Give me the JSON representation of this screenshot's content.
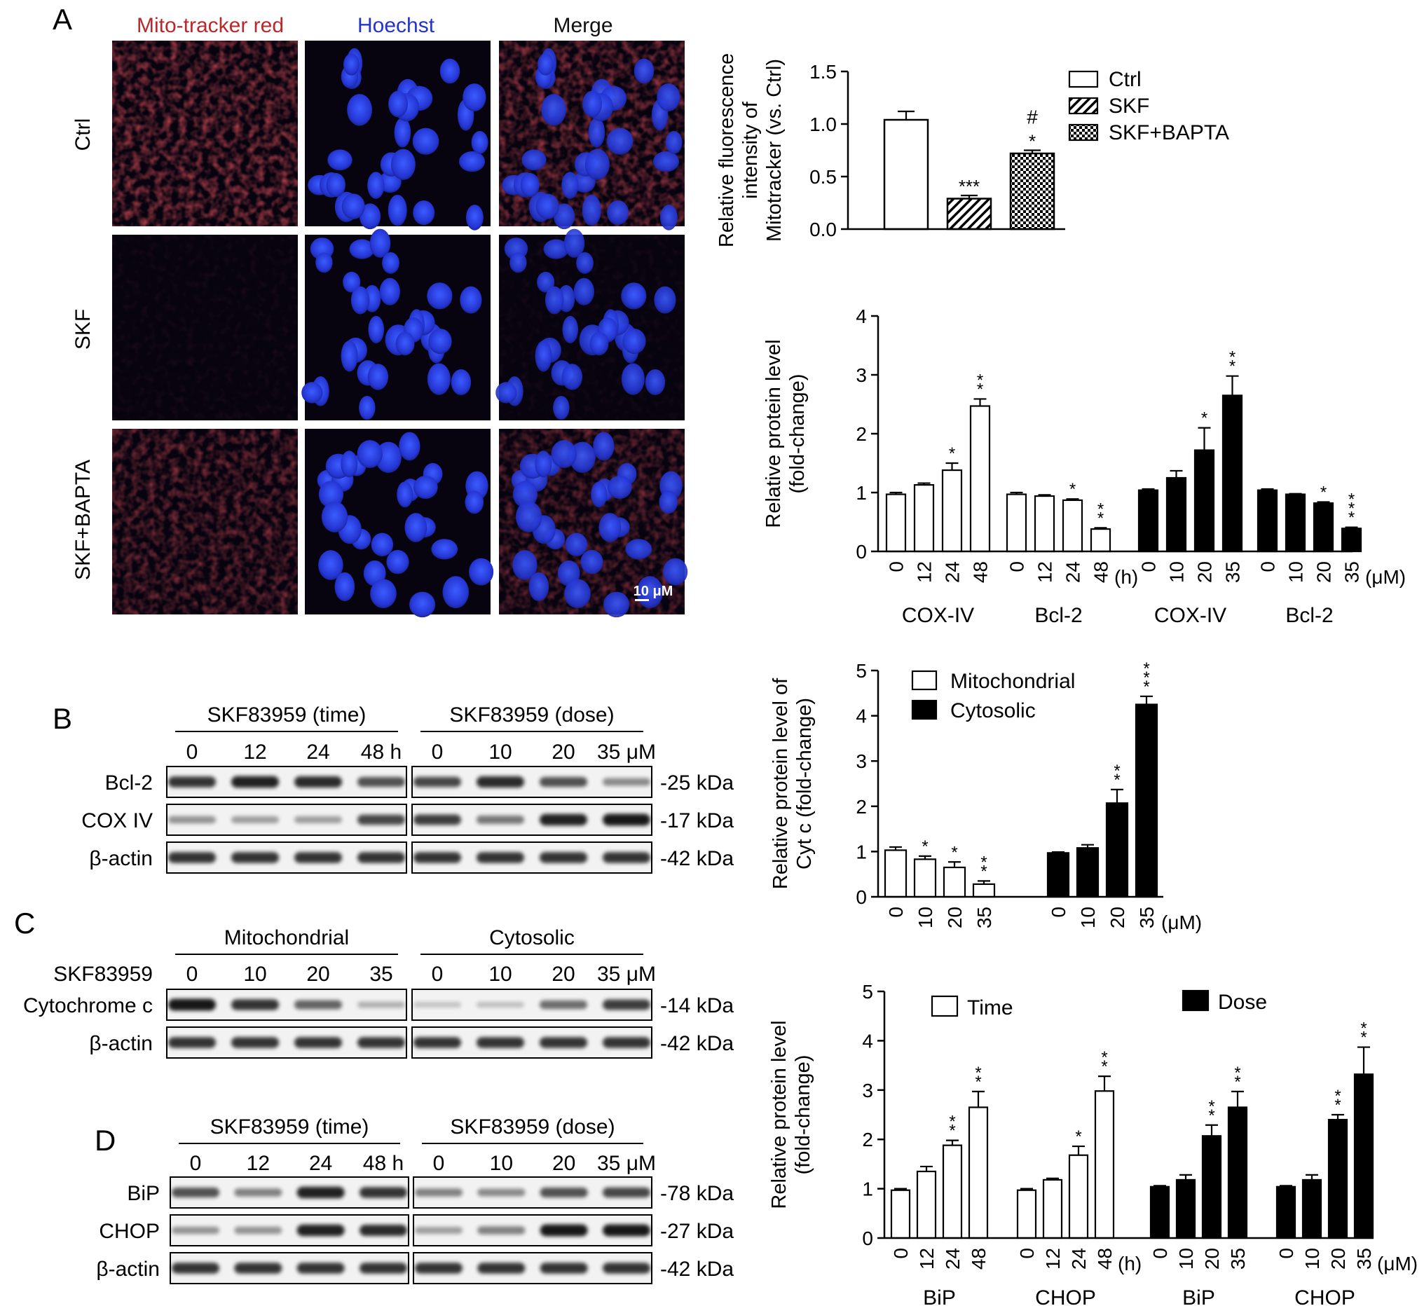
{
  "panel_labels": [
    "A",
    "B",
    "C",
    "D"
  ],
  "micrograph": {
    "columns": [
      "Mito-tracker red",
      "Hoechst",
      "Merge"
    ],
    "rows": [
      "Ctrl",
      "SKF",
      "SKF+BAPTA"
    ],
    "scale_bar": "10 μM",
    "colors": {
      "mito": "#c0282c",
      "hoechst": "#2433c8",
      "background": "#0a0612"
    }
  },
  "blots": {
    "B": {
      "headers": [
        "SKF83959 (time)",
        "SKF83959 (dose)"
      ],
      "left_lanes": [
        "0",
        "12",
        "24",
        "48 h"
      ],
      "right_lanes": [
        "0",
        "10",
        "20",
        "35 μM"
      ],
      "rows": [
        {
          "label": "Bcl-2",
          "kda": "-25 kDa",
          "intensity_left": [
            0.85,
            0.95,
            0.9,
            0.7
          ],
          "intensity_right": [
            0.75,
            0.9,
            0.7,
            0.4
          ]
        },
        {
          "label": "COX IV",
          "kda": "-17 kDa",
          "intensity_left": [
            0.35,
            0.3,
            0.3,
            0.75
          ],
          "intensity_right": [
            0.8,
            0.5,
            0.95,
            1.0
          ]
        },
        {
          "label": "β-actin",
          "kda": "-42 kDa",
          "intensity_left": [
            0.85,
            0.85,
            0.85,
            0.85
          ],
          "intensity_right": [
            0.85,
            0.85,
            0.85,
            0.85
          ]
        }
      ]
    },
    "C": {
      "headers": [
        "Mitochondrial",
        "Cytosolic"
      ],
      "row_title": "SKF83959",
      "left_lanes": [
        "0",
        "10",
        "20",
        "35"
      ],
      "right_lanes": [
        "0",
        "10",
        "20",
        "35 μM"
      ],
      "rows": [
        {
          "label": "Cytochrome c",
          "kda": "-14 kDa",
          "intensity_left": [
            1.0,
            0.85,
            0.6,
            0.2
          ],
          "intensity_right": [
            0.1,
            0.12,
            0.55,
            0.8
          ]
        },
        {
          "label": "β-actin",
          "kda": "-42 kDa",
          "intensity_left": [
            0.85,
            0.85,
            0.85,
            0.85
          ],
          "intensity_right": [
            0.85,
            0.85,
            0.85,
            0.85
          ]
        }
      ]
    },
    "D": {
      "headers": [
        "SKF83959 (time)",
        "SKF83959 (dose)"
      ],
      "left_lanes": [
        "0",
        "12",
        "24",
        "48 h"
      ],
      "right_lanes": [
        "0",
        "10",
        "20",
        "35 μM"
      ],
      "rows": [
        {
          "label": "BiP",
          "kda": "-78 kDa",
          "intensity_left": [
            0.7,
            0.45,
            0.95,
            0.85
          ],
          "intensity_right": [
            0.45,
            0.4,
            0.7,
            0.75
          ]
        },
        {
          "label": "CHOP",
          "kda": "-27 kDa",
          "intensity_left": [
            0.35,
            0.35,
            0.95,
            0.9
          ],
          "intensity_right": [
            0.3,
            0.45,
            1.0,
            1.0
          ]
        },
        {
          "label": "β-actin",
          "kda": "-42 kDa",
          "intensity_left": [
            0.85,
            0.85,
            0.85,
            0.85
          ],
          "intensity_right": [
            0.85,
            0.85,
            0.85,
            0.85
          ]
        }
      ]
    }
  },
  "chart_data": [
    {
      "type": "bar",
      "panel": "A",
      "ylabel": "Relative fluorescence intensity of Mitotracker (vs. Ctrl)",
      "ylabel_lines": [
        "Relative fluorescence",
        "intensity of",
        "Mitotracker (vs. Ctrl)"
      ],
      "ylim": [
        0,
        1.5
      ],
      "yticks": [
        "0.0",
        "0.5",
        "1.0",
        "1.5"
      ],
      "categories": [
        "Ctrl",
        "SKF",
        "SKF+BAPTA"
      ],
      "values": [
        1.04,
        0.29,
        0.72
      ],
      "errors": [
        0.08,
        0.03,
        0.03
      ],
      "annotations": [
        [
          ""
        ],
        [
          "***"
        ],
        [
          "*",
          "#"
        ]
      ],
      "fills": [
        "white",
        "hatch",
        "checker"
      ],
      "legend": [
        "Ctrl",
        "SKF",
        "SKF+BAPTA"
      ],
      "legend_position": "right"
    },
    {
      "type": "bar",
      "panel": "A",
      "ylabel": "Relative protein level (fold-change)",
      "ylabel_lines": [
        "Relative protein level",
        "(fold-change)"
      ],
      "ylim": [
        0,
        4
      ],
      "yticks": [
        "0",
        "1",
        "2",
        "3",
        "4"
      ],
      "groups": [
        {
          "name": "COX-IV",
          "fill": "white",
          "labels": [
            "0",
            "12",
            "24",
            "48"
          ],
          "unit": "",
          "values": [
            0.97,
            1.13,
            1.38,
            2.47
          ],
          "errors": [
            0.03,
            0.03,
            0.12,
            0.12
          ],
          "stars": [
            0,
            0,
            1,
            2
          ]
        },
        {
          "name": "Bcl-2",
          "fill": "white",
          "labels": [
            "0",
            "12",
            "24",
            "48"
          ],
          "unit": "(h)",
          "values": [
            0.97,
            0.94,
            0.87,
            0.38
          ],
          "errors": [
            0.03,
            0.02,
            0.02,
            0.02
          ],
          "stars": [
            0,
            0,
            1,
            2
          ]
        },
        {
          "name": "COX-IV",
          "fill": "black",
          "labels": [
            "0",
            "10",
            "20",
            "35"
          ],
          "unit": "",
          "values": [
            1.04,
            1.25,
            1.72,
            2.65
          ],
          "errors": [
            0.02,
            0.12,
            0.38,
            0.33
          ],
          "stars": [
            0,
            0,
            1,
            2
          ]
        },
        {
          "name": "Bcl-2",
          "fill": "black",
          "labels": [
            "0",
            "10",
            "20",
            "35"
          ],
          "unit": "(μM)",
          "values": [
            1.04,
            0.97,
            0.82,
            0.39
          ],
          "errors": [
            0.02,
            0.01,
            0.02,
            0.02
          ],
          "stars": [
            0,
            0,
            1,
            3
          ]
        }
      ]
    },
    {
      "type": "bar",
      "panel": "C",
      "ylabel": "Relative protein level of Cyt c (fold-change)",
      "ylabel_lines": [
        "Relative protein level of",
        "Cyt c (fold-change)"
      ],
      "ylim": [
        0,
        5
      ],
      "yticks": [
        "0",
        "1",
        "2",
        "3",
        "4",
        "5"
      ],
      "groups": [
        {
          "name": "",
          "fill": "white",
          "labels": [
            "0",
            "10",
            "20",
            "35"
          ],
          "unit": "",
          "values": [
            1.03,
            0.83,
            0.65,
            0.28
          ],
          "errors": [
            0.07,
            0.07,
            0.12,
            0.07
          ],
          "stars": [
            0,
            1,
            1,
            2
          ]
        },
        {
          "name": "",
          "fill": "black",
          "labels": [
            "0",
            "10",
            "20",
            "35"
          ],
          "unit": "(μM)",
          "values": [
            0.97,
            1.08,
            2.07,
            4.25
          ],
          "errors": [
            0.02,
            0.07,
            0.3,
            0.18
          ],
          "stars": [
            0,
            0,
            2,
            3
          ]
        }
      ],
      "legend": [
        {
          "name": "Mitochondrial",
          "fill": "white"
        },
        {
          "name": "Cytosolic",
          "fill": "black"
        }
      ],
      "legend_position": "top-left"
    },
    {
      "type": "bar",
      "panel": "D",
      "ylabel": "Relative protein level (fold-change)",
      "ylabel_lines": [
        "Relative protein level",
        "(fold-change)"
      ],
      "ylim": [
        0,
        5
      ],
      "yticks": [
        "0",
        "1",
        "2",
        "3",
        "4",
        "5"
      ],
      "groups": [
        {
          "name": "BiP",
          "fill": "white",
          "labels": [
            "0",
            "12",
            "24",
            "48"
          ],
          "unit": "",
          "values": [
            0.97,
            1.35,
            1.88,
            2.65
          ],
          "errors": [
            0.03,
            0.1,
            0.1,
            0.32
          ],
          "stars": [
            0,
            0,
            2,
            2
          ]
        },
        {
          "name": "CHOP",
          "fill": "white",
          "labels": [
            "0",
            "12",
            "24",
            "48"
          ],
          "unit": "(h)",
          "values": [
            0.97,
            1.18,
            1.68,
            2.98
          ],
          "errors": [
            0.03,
            0.03,
            0.18,
            0.3
          ],
          "stars": [
            0,
            0,
            1,
            2
          ]
        },
        {
          "name": "BiP",
          "fill": "black",
          "labels": [
            "0",
            "10",
            "20",
            "35"
          ],
          "unit": "",
          "values": [
            1.04,
            1.18,
            2.07,
            2.65
          ],
          "errors": [
            0.02,
            0.1,
            0.22,
            0.32
          ],
          "stars": [
            0,
            0,
            2,
            2
          ]
        },
        {
          "name": "CHOP",
          "fill": "black",
          "labels": [
            "0",
            "10",
            "20",
            "35"
          ],
          "unit": "(μM)",
          "values": [
            1.04,
            1.18,
            2.4,
            3.32
          ],
          "errors": [
            0.02,
            0.1,
            0.1,
            0.55
          ],
          "stars": [
            0,
            0,
            2,
            2
          ]
        }
      ],
      "legend": [
        {
          "name": "Time",
          "fill": "white"
        },
        {
          "name": "Dose",
          "fill": "black"
        }
      ],
      "legend_position": "top"
    }
  ]
}
